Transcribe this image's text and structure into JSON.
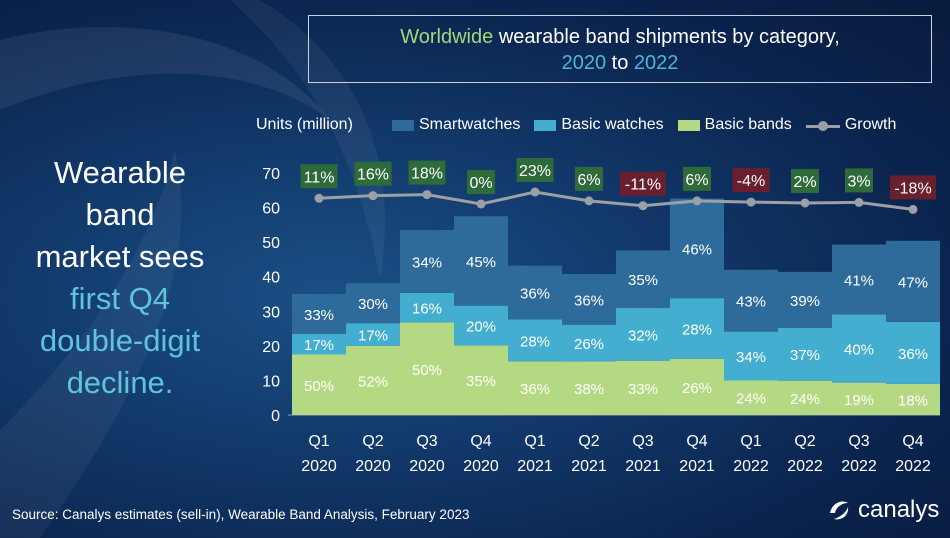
{
  "title": {
    "part1": "Worldwide",
    "part2": "wearable band shipments by category,",
    "part3": "2020",
    "part4": "to",
    "part5": "2022"
  },
  "headline": {
    "line1": "Wearable",
    "line2": "band",
    "line3": "market sees",
    "line4": "first Q4",
    "line5": "double-digit",
    "line6": "decline."
  },
  "source": "Source: Canalys estimates (sell-in), Wearable Band Analysis, February 2023",
  "logo_text": "canalys",
  "colors": {
    "smartwatches": "#2e6a9a",
    "basic_watches": "#43aed0",
    "basic_bands": "#b5d982",
    "growth": "#9aa0a6",
    "growth_positive": "#2f6b3a",
    "growth_negative": "#6a1f2d"
  },
  "chart_data": {
    "type": "bar",
    "stacked": true,
    "ylabel": "Units (million)",
    "ylim": [
      0,
      70
    ],
    "yticks": [
      0,
      10,
      20,
      30,
      40,
      50,
      60,
      70
    ],
    "categories": [
      "Q1 2020",
      "Q2 2020",
      "Q3 2020",
      "Q4 2020",
      "Q1 2021",
      "Q2 2021",
      "Q3 2021",
      "Q4 2021",
      "Q1 2022",
      "Q2 2022",
      "Q3 2022",
      "Q4 2022"
    ],
    "category_lines": [
      [
        "Q1",
        "2020"
      ],
      [
        "Q2",
        "2020"
      ],
      [
        "Q3",
        "2020"
      ],
      [
        "Q4",
        "2020"
      ],
      [
        "Q1",
        "2021"
      ],
      [
        "Q2",
        "2021"
      ],
      [
        "Q3",
        "2021"
      ],
      [
        "Q4",
        "2021"
      ],
      [
        "Q1",
        "2022"
      ],
      [
        "Q2",
        "2022"
      ],
      [
        "Q3",
        "2022"
      ],
      [
        "Q4",
        "2022"
      ]
    ],
    "totals": [
      35,
      38.5,
      53.5,
      57.5,
      43.2,
      40.8,
      47.6,
      62.6,
      41.6,
      41.4,
      49.3,
      49.9
    ],
    "series": [
      {
        "name": "Basic bands",
        "labels": [
          "50%",
          "52%",
          "50%",
          "35%",
          "36%",
          "38%",
          "33%",
          "26%",
          "24%",
          "24%",
          "19%",
          "18%"
        ],
        "shares": [
          50,
          52,
          50,
          35,
          36,
          38,
          33,
          26,
          24,
          24,
          19,
          18
        ]
      },
      {
        "name": "Basic watches",
        "labels": [
          "17%",
          "17%",
          "16%",
          "20%",
          "28%",
          "26%",
          "32%",
          "28%",
          "34%",
          "37%",
          "40%",
          "36%"
        ],
        "shares": [
          17,
          17,
          16,
          20,
          28,
          26,
          32,
          28,
          34,
          37,
          40,
          36
        ]
      },
      {
        "name": "Smartwatches",
        "labels": [
          "33%",
          "30%",
          "34%",
          "45%",
          "36%",
          "36%",
          "35%",
          "46%",
          "43%",
          "39%",
          "41%",
          "47%"
        ],
        "shares": [
          33,
          30,
          34,
          45,
          36,
          36,
          35,
          46,
          43,
          39,
          41,
          47
        ]
      }
    ],
    "growth": {
      "name": "Growth",
      "labels": [
        "11%",
        "16%",
        "18%",
        "0%",
        "23%",
        "6%",
        "-11%",
        "6%",
        "-4%",
        "2%",
        "3%",
        "-18%"
      ],
      "values": [
        11,
        16,
        18,
        0,
        23,
        6,
        -11,
        6,
        -4,
        2,
        3,
        -18
      ]
    },
    "legend": [
      "Smartwatches",
      "Basic watches",
      "Basic bands",
      "Growth"
    ],
    "legend_position": "top"
  }
}
